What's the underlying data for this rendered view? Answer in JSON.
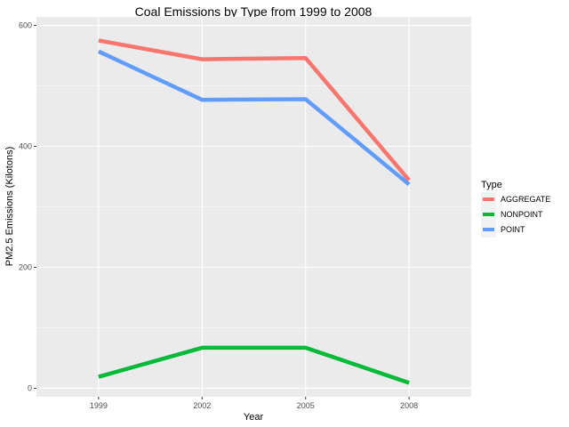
{
  "chart_data": {
    "type": "line",
    "title": "Coal Emissions by Type from 1999 to 2008",
    "xlabel": "Year",
    "ylabel": "PM2.5 Emissions (Kilotons)",
    "x": [
      1999,
      2002,
      2005,
      2008
    ],
    "x_tick_labels": [
      "1999",
      "2002",
      "2005",
      "2008"
    ],
    "y_ticks": [
      0,
      200,
      400,
      600
    ],
    "y_tick_labels": [
      "0",
      "200",
      "400",
      "600"
    ],
    "ylim": [
      -14,
      614
    ],
    "legend_title": "Type",
    "legend_position": "right",
    "grid": true,
    "series": [
      {
        "name": "AGGREGATE",
        "color": "#F8766D",
        "values": [
          575,
          544,
          546,
          344
        ]
      },
      {
        "name": "NONPOINT",
        "color": "#00BA38",
        "values": [
          19,
          67,
          67,
          9
        ]
      },
      {
        "name": "POINT",
        "color": "#619CFF",
        "values": [
          557,
          477,
          478,
          337
        ]
      }
    ]
  }
}
